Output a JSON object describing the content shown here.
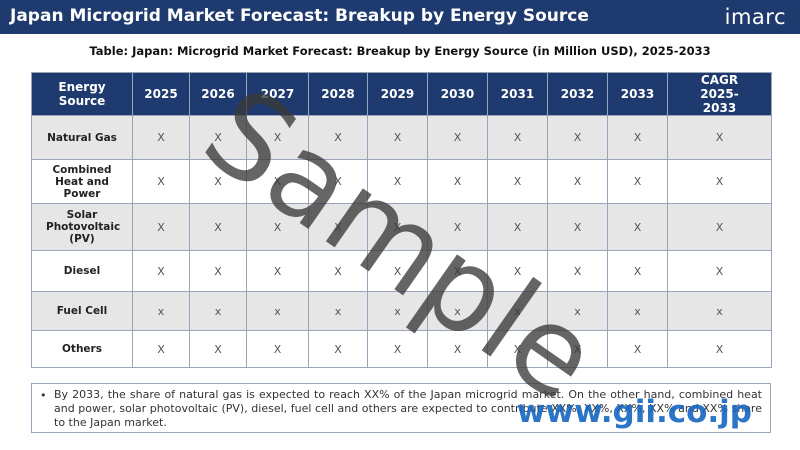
{
  "header": {
    "title": "Japan Microgrid Market Forecast: Breakup by Energy Source",
    "logo": "imarc"
  },
  "caption": "Table: Japan: Microgrid Market Forecast: Breakup by Energy Source (in Million USD), 2025-2033",
  "table": {
    "headers": [
      "Energy Source",
      "2025",
      "2026",
      "2027",
      "2028",
      "2029",
      "2030",
      "2031",
      "2032",
      "2033",
      "CAGR 2025-2033"
    ],
    "rows": [
      {
        "label": "Natural Gas",
        "cells": [
          "X",
          "X",
          "X",
          "X",
          "X",
          "X",
          "X",
          "X",
          "X",
          "X"
        ]
      },
      {
        "label": "Combined Heat and Power",
        "cells": [
          "X",
          "X",
          "X",
          "X",
          "X",
          "X",
          "X",
          "X",
          "X",
          "X"
        ]
      },
      {
        "label": "Solar Photovoltaic (PV)",
        "cells": [
          "X",
          "X",
          "X",
          "X",
          "X",
          "X",
          "X",
          "X",
          "X",
          "X"
        ]
      },
      {
        "label": "Diesel",
        "cells": [
          "X",
          "X",
          "X",
          "X",
          "X",
          "X",
          "X",
          "X",
          "X",
          "X"
        ]
      },
      {
        "label": "Fuel Cell",
        "cells": [
          "x",
          "x",
          "x",
          "x",
          "x",
          "x",
          "x",
          "x",
          "x",
          "x"
        ]
      },
      {
        "label": "Others",
        "cells": [
          "X",
          "X",
          "X",
          "X",
          "X",
          "X",
          "X",
          "X",
          "X",
          "X"
        ]
      }
    ]
  },
  "note": {
    "bullet": "•",
    "text": "By 2033, the share of natural gas is expected to reach XX% of the Japan microgrid market. On the other hand, combined heat and power, solar photovoltaic (PV), diesel, fuel cell and others are expected to contribute XX%, XX%, XX%, XX% and XX% share to the Japan market."
  },
  "watermark": "Sample",
  "site_watermark": "www.gii.co.jp"
}
